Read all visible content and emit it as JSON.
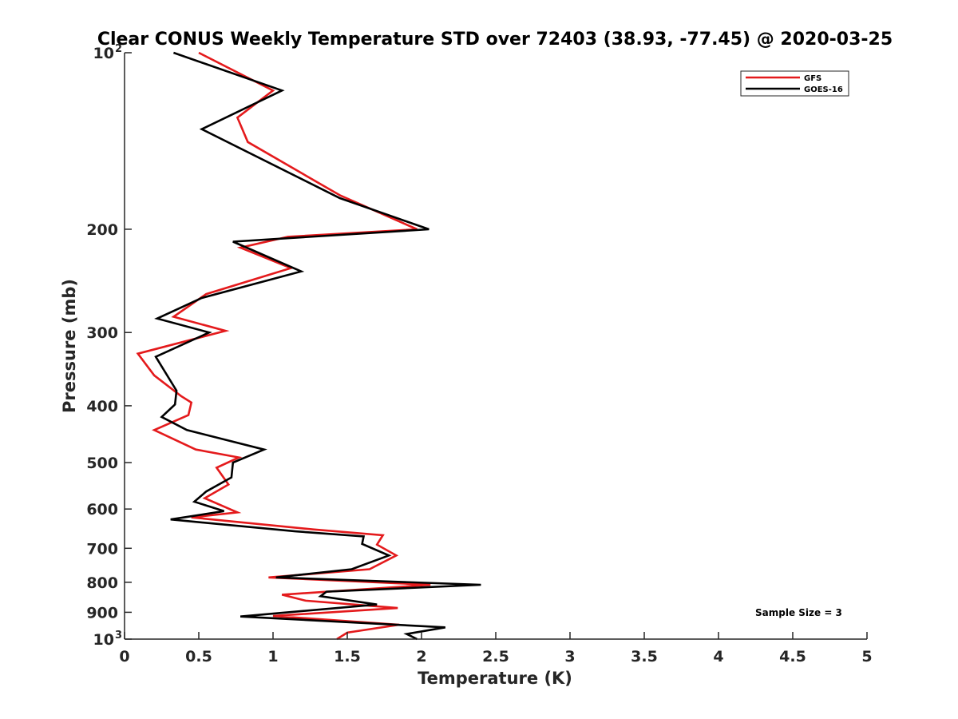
{
  "chart_data": {
    "type": "line",
    "title": "Clear CONUS Weekly Temperature STD over 72403 (38.93, -77.45) @ 2020-03-25",
    "xlabel": "Temperature (K)",
    "ylabel": "Pressure (mb)",
    "xlim": [
      0,
      5
    ],
    "ylim": [
      100,
      1000
    ],
    "y_scale": "log",
    "y_reversed": true,
    "grid": false,
    "legend_position": "top-right",
    "x_ticks": [
      "0",
      "0.5",
      "1",
      "1.5",
      "2",
      "2.5",
      "3",
      "3.5",
      "4",
      "4.5",
      "5"
    ],
    "y_ticks": [
      {
        "value": 100,
        "label": "10",
        "sup": "2"
      },
      {
        "value": 200,
        "label": "200",
        "sup": ""
      },
      {
        "value": 300,
        "label": "300",
        "sup": ""
      },
      {
        "value": 400,
        "label": "400",
        "sup": ""
      },
      {
        "value": 500,
        "label": "500",
        "sup": ""
      },
      {
        "value": 600,
        "label": "600",
        "sup": ""
      },
      {
        "value": 700,
        "label": "700",
        "sup": ""
      },
      {
        "value": 800,
        "label": "800",
        "sup": ""
      },
      {
        "value": 900,
        "label": "900",
        "sup": ""
      },
      {
        "value": 1000,
        "label": "10",
        "sup": "3"
      }
    ],
    "annotation": "Sample Size = 3",
    "series": [
      {
        "name": "GFS",
        "color": "#e41a1c",
        "points": [
          [
            0.5,
            100
          ],
          [
            1.0,
            116
          ],
          [
            0.76,
            129
          ],
          [
            0.83,
            142
          ],
          [
            1.45,
            175
          ],
          [
            1.97,
            200
          ],
          [
            1.1,
            206
          ],
          [
            0.78,
            215
          ],
          [
            1.12,
            233
          ],
          [
            0.55,
            258
          ],
          [
            0.33,
            282
          ],
          [
            0.68,
            298
          ],
          [
            0.09,
            326
          ],
          [
            0.2,
            355
          ],
          [
            0.38,
            385
          ],
          [
            0.45,
            395
          ],
          [
            0.43,
            415
          ],
          [
            0.2,
            440
          ],
          [
            0.48,
            475
          ],
          [
            0.77,
            490
          ],
          [
            0.62,
            510
          ],
          [
            0.7,
            545
          ],
          [
            0.54,
            575
          ],
          [
            0.76,
            608
          ],
          [
            0.45,
            620
          ],
          [
            1.27,
            650
          ],
          [
            1.74,
            665
          ],
          [
            1.7,
            690
          ],
          [
            1.83,
            720
          ],
          [
            1.65,
            760
          ],
          [
            0.97,
            785
          ],
          [
            2.06,
            808
          ],
          [
            1.06,
            840
          ],
          [
            1.22,
            860
          ],
          [
            1.84,
            885
          ],
          [
            1.0,
            913
          ],
          [
            1.85,
            945
          ],
          [
            1.5,
            975
          ],
          [
            1.43,
            1000
          ]
        ]
      },
      {
        "name": "GOES-16",
        "color": "#000000",
        "points": [
          [
            0.33,
            100
          ],
          [
            1.06,
            116
          ],
          [
            0.52,
            135
          ],
          [
            1.45,
            177
          ],
          [
            2.05,
            200
          ],
          [
            0.73,
            210
          ],
          [
            1.19,
            236
          ],
          [
            0.52,
            262
          ],
          [
            0.22,
            284
          ],
          [
            0.57,
            300
          ],
          [
            0.21,
            330
          ],
          [
            0.35,
            377
          ],
          [
            0.34,
            398
          ],
          [
            0.25,
            418
          ],
          [
            0.42,
            440
          ],
          [
            0.94,
            475
          ],
          [
            0.73,
            500
          ],
          [
            0.72,
            530
          ],
          [
            0.55,
            560
          ],
          [
            0.47,
            583
          ],
          [
            0.67,
            605
          ],
          [
            0.31,
            625
          ],
          [
            1.15,
            655
          ],
          [
            1.61,
            668
          ],
          [
            1.6,
            688
          ],
          [
            1.78,
            720
          ],
          [
            1.53,
            760
          ],
          [
            1.02,
            785
          ],
          [
            2.4,
            808
          ],
          [
            1.36,
            830
          ],
          [
            1.32,
            845
          ],
          [
            1.7,
            873
          ],
          [
            0.78,
            915
          ],
          [
            2.16,
            955
          ],
          [
            1.9,
            980
          ],
          [
            1.97,
            1000
          ]
        ]
      }
    ]
  }
}
